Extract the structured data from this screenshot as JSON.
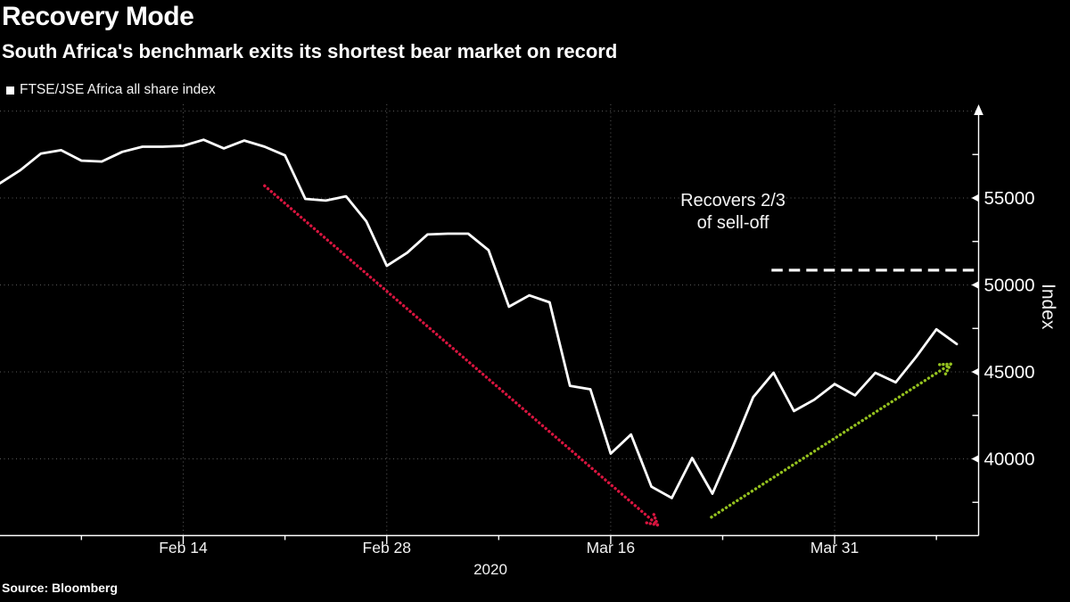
{
  "header": {
    "title": "Recovery Mode",
    "subtitle": "South Africa's benchmark exits its shortest bear market on record"
  },
  "legend": {
    "label": "FTSE/JSE Africa all share index",
    "marker_color": "#ffffff"
  },
  "annotation": {
    "line1": "Recovers 2/3",
    "line2": "of sell-off"
  },
  "axis": {
    "y_title": "Index",
    "x_year": "2020"
  },
  "source": "Source: Bloomberg",
  "colors": {
    "background": "#000000",
    "series_line": "#ffffff",
    "selloff_arrow": "#d8153f",
    "rebound_arrow": "#94c11f",
    "recovery_dash": "#ffffff",
    "gridline": "#5a5a5a",
    "axis": "#ffffff",
    "text": "#f2f2f2"
  },
  "chart_data": {
    "type": "line",
    "title": "Recovery Mode",
    "series_name": "FTSE/JSE Africa all share index",
    "xlabel": "2020",
    "ylabel": "Index",
    "ylim": [
      35500,
      60400
    ],
    "grid": "dotted",
    "legend_position": "top-left",
    "x": [
      "Feb 3",
      "Feb 4",
      "Feb 5",
      "Feb 6",
      "Feb 7",
      "Feb 10",
      "Feb 11",
      "Feb 12",
      "Feb 13",
      "Feb 14",
      "Feb 17",
      "Feb 18",
      "Feb 19",
      "Feb 20",
      "Feb 21",
      "Feb 24",
      "Feb 25",
      "Feb 26",
      "Feb 27",
      "Feb 28",
      "Mar 2",
      "Mar 3",
      "Mar 4",
      "Mar 5",
      "Mar 6",
      "Mar 9",
      "Mar 10",
      "Mar 11",
      "Mar 12",
      "Mar 13",
      "Mar 16",
      "Mar 17",
      "Mar 18",
      "Mar 19",
      "Mar 20",
      "Mar 23",
      "Mar 24",
      "Mar 25",
      "Mar 26",
      "Mar 27",
      "Mar 30",
      "Mar 31",
      "Apr 1",
      "Apr 2",
      "Apr 3",
      "Apr 6",
      "Apr 7",
      "Apr 8"
    ],
    "values": [
      55850,
      56600,
      57550,
      57750,
      57150,
      57100,
      57650,
      57950,
      57950,
      58000,
      58350,
      57850,
      58300,
      57950,
      57450,
      54950,
      54850,
      55100,
      53650,
      51100,
      51850,
      52900,
      52950,
      52950,
      52000,
      48750,
      49400,
      49000,
      44200,
      44000,
      40300,
      41400,
      38400,
      37750,
      40050,
      38000,
      40700,
      43550,
      44950,
      42750,
      43400,
      44300,
      43650,
      44950,
      44400,
      45850,
      47450,
      46600
    ],
    "x_major_ticks": [
      {
        "index": 9,
        "label": "Feb 14"
      },
      {
        "index": 19,
        "label": "Feb 28"
      },
      {
        "index": 30,
        "label": "Mar 16"
      },
      {
        "index": 41,
        "label": "Mar 31"
      }
    ],
    "x_minor_tick_indices": [
      4,
      14,
      24.5,
      35.5,
      46
    ],
    "y_major_ticks": [
      40000,
      45000,
      50000,
      55000
    ],
    "y_minor_ticks": [
      37500,
      42500,
      47500,
      52500,
      57500
    ],
    "y_gridline_values": [
      40000,
      45000,
      50000,
      55000,
      60000
    ],
    "annotations": {
      "recovery_level_line": {
        "value": 50850,
        "from_index": 37.9,
        "style": "dashed",
        "color": "#ffffff",
        "label": [
          "Recovers 2/3",
          "of sell-off"
        ]
      },
      "selloff_trend_arrow": {
        "from": {
          "index": 13.0,
          "value": 55700
        },
        "to": {
          "index": 32.3,
          "value": 36200
        },
        "style": "dotted",
        "color": "#d8153f"
      },
      "rebound_trend_arrow": {
        "from": {
          "index": 34.95,
          "value": 36650
        },
        "to": {
          "index": 46.7,
          "value": 45450
        },
        "style": "dotted",
        "color": "#94c11f"
      }
    }
  }
}
